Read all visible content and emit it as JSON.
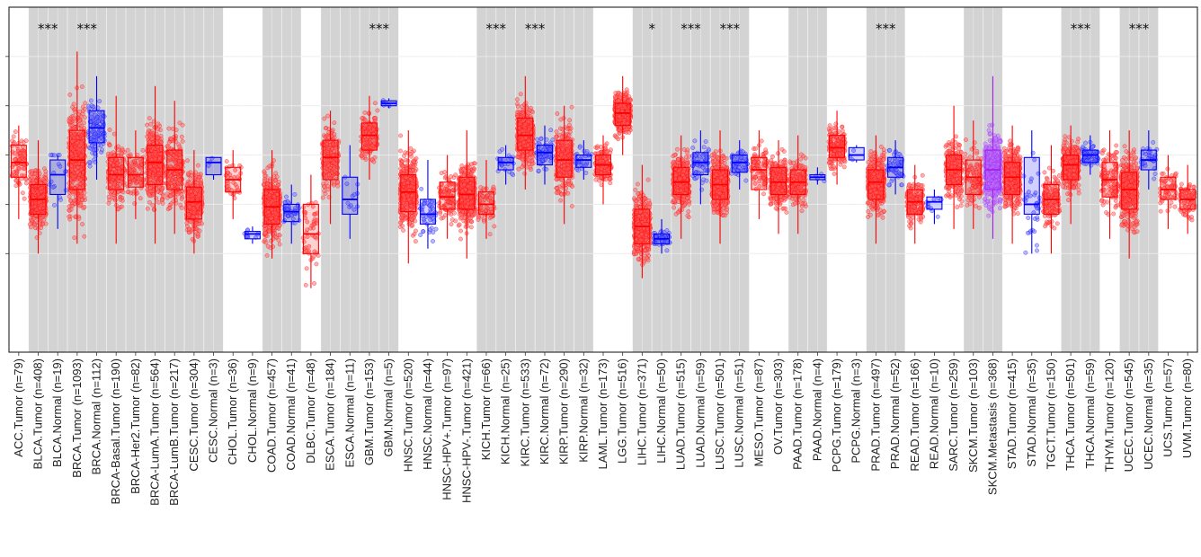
{
  "chart_data": {
    "type": "box",
    "title": "",
    "xlabel": "",
    "ylabel": "",
    "ylim": [
      -1,
      6
    ],
    "y_ticks": [
      1,
      2,
      3,
      4,
      5
    ],
    "grid": true,
    "legend": "none",
    "colors": {
      "tumor": "#ff0000",
      "normal": "#0000ff",
      "metastasis": "#a020f0",
      "shade": "#d3d3d3",
      "grid": "#ebebeb"
    },
    "shaded_groups": [
      "BLCA",
      "BRCA",
      "CESC",
      "COAD",
      "ESCA",
      "GBM",
      "KICH",
      "KIRC",
      "KIRP",
      "LIHC",
      "LUAD",
      "LUSC",
      "PAAD",
      "PRAD",
      "SKCM",
      "THCA",
      "UCEC"
    ],
    "categories": [
      {
        "label": "ACC.Tumor (n=79)",
        "group": "ACC",
        "kind": "tumor",
        "n": 79,
        "q1": 2.55,
        "median": 2.85,
        "q3": 3.2,
        "wlo": 1.7,
        "whi": 3.6
      },
      {
        "label": "BLCA.Tumor (n=408)",
        "group": "BLCA",
        "kind": "tumor",
        "n": 408,
        "q1": 1.8,
        "median": 2.1,
        "q3": 2.4,
        "wlo": 1.0,
        "whi": 3.3,
        "sig": "***"
      },
      {
        "label": "BLCA.Normal (n=19)",
        "group": "BLCA",
        "kind": "normal",
        "n": 19,
        "q1": 2.2,
        "median": 2.6,
        "q3": 2.9,
        "wlo": 1.5,
        "whi": 3.0
      },
      {
        "label": "BRCA.Tumor (n=1093)",
        "group": "BRCA",
        "kind": "tumor",
        "n": 1093,
        "q1": 2.3,
        "median": 2.9,
        "q3": 3.5,
        "wlo": 1.2,
        "whi": 5.1,
        "sig": "***"
      },
      {
        "label": "BRCA.Normal (n=112)",
        "group": "BRCA",
        "kind": "normal",
        "n": 112,
        "q1": 3.25,
        "median": 3.55,
        "q3": 3.9,
        "wlo": 2.5,
        "whi": 4.6
      },
      {
        "label": "BRCA-Basal.Tumor (n=190)",
        "group": "BRCA",
        "kind": "tumor",
        "n": 190,
        "q1": 2.3,
        "median": 2.6,
        "q3": 2.95,
        "wlo": 1.2,
        "whi": 4.2
      },
      {
        "label": "BRCA-Her2.Tumor (n=82)",
        "group": "BRCA",
        "kind": "tumor",
        "n": 82,
        "q1": 2.35,
        "median": 2.6,
        "q3": 2.95,
        "wlo": 1.7,
        "whi": 3.5
      },
      {
        "label": "BRCA-LumA.Tumor (n=564)",
        "group": "BRCA",
        "kind": "tumor",
        "n": 564,
        "q1": 2.4,
        "median": 2.85,
        "q3": 3.2,
        "wlo": 1.2,
        "whi": 4.4
      },
      {
        "label": "BRCA-LumB.Tumor (n=217)",
        "group": "BRCA",
        "kind": "tumor",
        "n": 217,
        "q1": 2.3,
        "median": 2.7,
        "q3": 3.1,
        "wlo": 1.4,
        "whi": 4.1
      },
      {
        "label": "CESC.Tumor (n=304)",
        "group": "CESC",
        "kind": "tumor",
        "n": 304,
        "q1": 1.7,
        "median": 2.05,
        "q3": 2.35,
        "wlo": 1.0,
        "whi": 3.1
      },
      {
        "label": "CESC.Normal (n=3)",
        "group": "CESC",
        "kind": "normal",
        "n": 3,
        "q1": 2.6,
        "median": 2.85,
        "q3": 2.95,
        "wlo": 2.5,
        "whi": 2.95
      },
      {
        "label": "CHOL.Tumor (n=36)",
        "group": "CHOL",
        "kind": "tumor",
        "n": 36,
        "q1": 2.25,
        "median": 2.5,
        "q3": 2.75,
        "wlo": 1.7,
        "whi": 3.1
      },
      {
        "label": "CHOL.Normal (n=9)",
        "group": "CHOL",
        "kind": "normal",
        "n": 9,
        "q1": 1.3,
        "median": 1.4,
        "q3": 1.45,
        "wlo": 1.2,
        "whi": 1.55
      },
      {
        "label": "COAD.Tumor (n=457)",
        "group": "COAD",
        "kind": "tumor",
        "n": 457,
        "q1": 1.6,
        "median": 1.95,
        "q3": 2.3,
        "wlo": 0.9,
        "whi": 3.1
      },
      {
        "label": "COAD.Normal (n=41)",
        "group": "COAD",
        "kind": "normal",
        "n": 41,
        "q1": 1.65,
        "median": 1.85,
        "q3": 2.0,
        "wlo": 1.2,
        "whi": 2.4
      },
      {
        "label": "DLBC.Tumor (n=48)",
        "group": "DLBC",
        "kind": "tumor",
        "n": 48,
        "q1": 1.0,
        "median": 1.4,
        "q3": 2.0,
        "wlo": 0.3,
        "whi": 2.6
      },
      {
        "label": "ESCA.Tumor (n=184)",
        "group": "ESCA",
        "kind": "tumor",
        "n": 184,
        "q1": 2.5,
        "median": 2.95,
        "q3": 3.3,
        "wlo": 1.6,
        "whi": 3.9,
        "sig": ""
      },
      {
        "label": "ESCA.Normal (n=11)",
        "group": "ESCA",
        "kind": "normal",
        "n": 11,
        "q1": 1.8,
        "median": 2.1,
        "q3": 2.55,
        "wlo": 1.3,
        "whi": 3.2
      },
      {
        "label": "GBM.Tumor (n=153)",
        "group": "GBM",
        "kind": "tumor",
        "n": 153,
        "q1": 3.1,
        "median": 3.4,
        "q3": 3.65,
        "wlo": 2.5,
        "whi": 4.2,
        "sig": "***"
      },
      {
        "label": "GBM.Normal (n=5)",
        "group": "GBM",
        "kind": "normal",
        "n": 5,
        "q1": 4.0,
        "median": 4.05,
        "q3": 4.1,
        "wlo": 3.95,
        "whi": 4.15
      },
      {
        "label": "HNSC.Tumor (n=520)",
        "group": "HNSC",
        "kind": "tumor",
        "n": 520,
        "q1": 1.85,
        "median": 2.25,
        "q3": 2.6,
        "wlo": 0.8,
        "whi": 3.5
      },
      {
        "label": "HNSC.Normal (n=44)",
        "group": "HNSC",
        "kind": "normal",
        "n": 44,
        "q1": 1.6,
        "median": 1.8,
        "q3": 2.1,
        "wlo": 1.1,
        "whi": 2.9
      },
      {
        "label": "HNSC-HPV+.Tumor (n=97)",
        "group": "HNSC",
        "kind": "tumor",
        "n": 97,
        "q1": 1.9,
        "median": 2.15,
        "q3": 2.45,
        "wlo": 1.3,
        "whi": 3.0
      },
      {
        "label": "HNSC-HPV-.Tumor (n=421)",
        "group": "HNSC",
        "kind": "tumor",
        "n": 421,
        "q1": 1.9,
        "median": 2.2,
        "q3": 2.55,
        "wlo": 0.9,
        "whi": 3.5
      },
      {
        "label": "KICH.Tumor (n=66)",
        "group": "KICH",
        "kind": "tumor",
        "n": 66,
        "q1": 1.8,
        "median": 2.0,
        "q3": 2.25,
        "wlo": 1.3,
        "whi": 2.9,
        "sig": "***"
      },
      {
        "label": "KICH.Normal (n=25)",
        "group": "KICH",
        "kind": "normal",
        "n": 25,
        "q1": 2.7,
        "median": 2.85,
        "q3": 2.95,
        "wlo": 2.4,
        "whi": 3.2
      },
      {
        "label": "KIRC.Tumor (n=533)",
        "group": "KIRC",
        "kind": "tumor",
        "n": 533,
        "q1": 3.1,
        "median": 3.4,
        "q3": 3.75,
        "wlo": 2.3,
        "whi": 4.6,
        "sig": "***"
      },
      {
        "label": "KIRC.Normal (n=72)",
        "group": "KIRC",
        "kind": "normal",
        "n": 72,
        "q1": 2.8,
        "median": 3.05,
        "q3": 3.2,
        "wlo": 2.4,
        "whi": 3.6
      },
      {
        "label": "KIRP.Tumor (n=290)",
        "group": "KIRP",
        "kind": "tumor",
        "n": 290,
        "q1": 2.55,
        "median": 2.9,
        "q3": 3.3,
        "wlo": 1.6,
        "whi": 4.0
      },
      {
        "label": "KIRP.Normal (n=32)",
        "group": "KIRP",
        "kind": "normal",
        "n": 32,
        "q1": 2.75,
        "median": 2.9,
        "q3": 3.0,
        "wlo": 2.5,
        "whi": 3.3
      },
      {
        "label": "LAML.Tumor (n=173)",
        "group": "LAML",
        "kind": "tumor",
        "n": 173,
        "q1": 2.6,
        "median": 2.8,
        "q3": 3.0,
        "wlo": 2.0,
        "whi": 3.4
      },
      {
        "label": "LGG.Tumor (n=516)",
        "group": "LGG",
        "kind": "tumor",
        "n": 516,
        "q1": 3.6,
        "median": 3.85,
        "q3": 4.05,
        "wlo": 3.0,
        "whi": 4.6
      },
      {
        "label": "LIHC.Tumor (n=371)",
        "group": "LIHC",
        "kind": "tumor",
        "n": 371,
        "q1": 1.2,
        "median": 1.55,
        "q3": 1.9,
        "wlo": 0.5,
        "whi": 2.8,
        "sig": "*"
      },
      {
        "label": "LIHC.Normal (n=50)",
        "group": "LIHC",
        "kind": "normal",
        "n": 50,
        "q1": 1.2,
        "median": 1.3,
        "q3": 1.4,
        "wlo": 1.0,
        "whi": 1.7
      },
      {
        "label": "LUAD.Tumor (n=515)",
        "group": "LUAD",
        "kind": "tumor",
        "n": 515,
        "q1": 2.2,
        "median": 2.45,
        "q3": 2.75,
        "wlo": 1.3,
        "whi": 3.4,
        "sig": "***"
      },
      {
        "label": "LUAD.Normal (n=59)",
        "group": "LUAD",
        "kind": "normal",
        "n": 59,
        "q1": 2.6,
        "median": 2.85,
        "q3": 3.05,
        "wlo": 2.0,
        "whi": 3.5
      },
      {
        "label": "LUSC.Tumor (n=501)",
        "group": "LUSC",
        "kind": "tumor",
        "n": 501,
        "q1": 2.1,
        "median": 2.4,
        "q3": 2.7,
        "wlo": 1.2,
        "whi": 3.5,
        "sig": "***"
      },
      {
        "label": "LUSC.Normal (n=51)",
        "group": "LUSC",
        "kind": "normal",
        "n": 51,
        "q1": 2.65,
        "median": 2.85,
        "q3": 3.0,
        "wlo": 2.3,
        "whi": 3.3
      },
      {
        "label": "MESO.Tumor (n=87)",
        "group": "MESO",
        "kind": "tumor",
        "n": 87,
        "q1": 2.3,
        "median": 2.7,
        "q3": 2.95,
        "wlo": 1.7,
        "whi": 3.5
      },
      {
        "label": "OV.Tumor (n=303)",
        "group": "OV",
        "kind": "tumor",
        "n": 303,
        "q1": 2.2,
        "median": 2.45,
        "q3": 2.75,
        "wlo": 1.4,
        "whi": 3.3
      },
      {
        "label": "PAAD.Tumor (n=178)",
        "group": "PAAD",
        "kind": "tumor",
        "n": 178,
        "q1": 2.2,
        "median": 2.45,
        "q3": 2.7,
        "wlo": 1.4,
        "whi": 3.4
      },
      {
        "label": "PAAD.Normal (n=4)",
        "group": "PAAD",
        "kind": "normal",
        "n": 4,
        "q1": 2.5,
        "median": 2.55,
        "q3": 2.6,
        "wlo": 2.4,
        "whi": 2.75
      },
      {
        "label": "PCPG.Tumor (n=179)",
        "group": "PCPG",
        "kind": "tumor",
        "n": 179,
        "q1": 2.95,
        "median": 3.15,
        "q3": 3.4,
        "wlo": 2.4,
        "whi": 3.9
      },
      {
        "label": "PCPG.Normal (n=3)",
        "group": "PCPG",
        "kind": "normal",
        "n": 3,
        "q1": 2.9,
        "median": 3.0,
        "q3": 3.15,
        "wlo": 2.85,
        "whi": 3.2
      },
      {
        "label": "PRAD.Tumor (n=497)",
        "group": "PRAD",
        "kind": "tumor",
        "n": 497,
        "q1": 2.1,
        "median": 2.45,
        "q3": 2.7,
        "wlo": 1.2,
        "whi": 3.4,
        "sig": "***"
      },
      {
        "label": "PRAD.Normal (n=52)",
        "group": "PRAD",
        "kind": "normal",
        "n": 52,
        "q1": 2.55,
        "median": 2.75,
        "q3": 2.95,
        "wlo": 2.2,
        "whi": 3.3
      },
      {
        "label": "READ.Tumor (n=166)",
        "group": "READ",
        "kind": "tumor",
        "n": 166,
        "q1": 1.8,
        "median": 2.05,
        "q3": 2.3,
        "wlo": 1.2,
        "whi": 2.8
      },
      {
        "label": "READ.Normal (n=10)",
        "group": "READ",
        "kind": "normal",
        "n": 10,
        "q1": 1.9,
        "median": 2.05,
        "q3": 2.15,
        "wlo": 1.6,
        "whi": 2.3
      },
      {
        "label": "SARC.Tumor (n=259)",
        "group": "SARC",
        "kind": "tumor",
        "n": 259,
        "q1": 2.4,
        "median": 2.7,
        "q3": 3.0,
        "wlo": 1.5,
        "whi": 4.0
      },
      {
        "label": "SKCM.Tumor (n=103)",
        "group": "SKCM",
        "kind": "tumor",
        "n": 103,
        "q1": 2.2,
        "median": 2.55,
        "q3": 2.9,
        "wlo": 1.5,
        "whi": 3.7
      },
      {
        "label": "SKCM.Metastasis (n=368)",
        "group": "SKCM",
        "kind": "metastasis",
        "n": 368,
        "q1": 2.3,
        "median": 2.7,
        "q3": 3.1,
        "wlo": 1.3,
        "whi": 4.6
      },
      {
        "label": "STAD.Tumor (n=415)",
        "group": "STAD",
        "kind": "tumor",
        "n": 415,
        "q1": 2.2,
        "median": 2.55,
        "q3": 2.85,
        "wlo": 1.2,
        "whi": 3.6
      },
      {
        "label": "STAD.Normal (n=35)",
        "group": "STAD",
        "kind": "normal",
        "n": 35,
        "q1": 1.8,
        "median": 2.0,
        "q3": 2.95,
        "wlo": 1.0,
        "whi": 3.5
      },
      {
        "label": "TGCT.Tumor (n=150)",
        "group": "TGCT",
        "kind": "tumor",
        "n": 150,
        "q1": 1.8,
        "median": 2.1,
        "q3": 2.4,
        "wlo": 1.0,
        "whi": 3.2
      },
      {
        "label": "THCA.Tumor (n=501)",
        "group": "THCA",
        "kind": "tumor",
        "n": 501,
        "q1": 2.5,
        "median": 2.8,
        "q3": 3.0,
        "wlo": 1.6,
        "whi": 3.6,
        "sig": "***"
      },
      {
        "label": "THCA.Normal (n=59)",
        "group": "THCA",
        "kind": "normal",
        "n": 59,
        "q1": 2.85,
        "median": 3.0,
        "q3": 3.1,
        "wlo": 2.6,
        "whi": 3.4
      },
      {
        "label": "THYM.Tumor (n=120)",
        "group": "THYM",
        "kind": "tumor",
        "n": 120,
        "q1": 2.15,
        "median": 2.5,
        "q3": 2.85,
        "wlo": 1.3,
        "whi": 3.5
      },
      {
        "label": "UCEC.Tumor (n=545)",
        "group": "UCEC",
        "kind": "tumor",
        "n": 545,
        "q1": 1.9,
        "median": 2.3,
        "q3": 2.65,
        "wlo": 0.9,
        "whi": 3.5,
        "sig": "***"
      },
      {
        "label": "UCEC.Normal (n=35)",
        "group": "UCEC",
        "kind": "normal",
        "n": 35,
        "q1": 2.7,
        "median": 2.9,
        "q3": 3.1,
        "wlo": 2.3,
        "whi": 3.5
      },
      {
        "label": "UCS.Tumor (n=57)",
        "group": "UCS",
        "kind": "tumor",
        "n": 57,
        "q1": 2.1,
        "median": 2.3,
        "q3": 2.55,
        "wlo": 1.5,
        "whi": 3.0
      },
      {
        "label": "UVM.Tumor (n=80)",
        "group": "UVM",
        "kind": "tumor",
        "n": 80,
        "q1": 1.9,
        "median": 2.1,
        "q3": 2.3,
        "wlo": 1.4,
        "whi": 2.8
      }
    ]
  }
}
